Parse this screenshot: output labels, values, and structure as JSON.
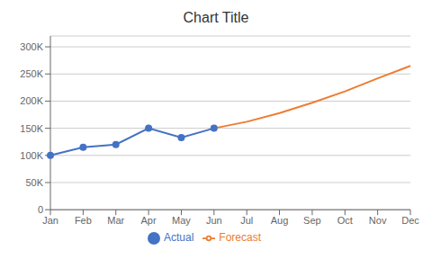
{
  "chart_data": {
    "type": "line",
    "title": "Chart Title",
    "categories": [
      "Jan",
      "Feb",
      "Mar",
      "Apr",
      "May",
      "Jun",
      "Jul",
      "Aug",
      "Sep",
      "Oct",
      "Nov",
      "Dec"
    ],
    "series": [
      {
        "name": "Actual",
        "color": "#4472C4",
        "marker": "circle",
        "values": [
          100000,
          115000,
          120000,
          150000,
          133000,
          150000,
          null,
          null,
          null,
          null,
          null,
          null
        ]
      },
      {
        "name": "Forecast",
        "color": "#ED7D31",
        "marker": "none",
        "values": [
          null,
          null,
          null,
          null,
          null,
          150000,
          162000,
          178000,
          197000,
          218000,
          242000,
          265000
        ]
      }
    ],
    "ylim": [
      0,
      320000
    ],
    "yticks": [
      0,
      {
        "value": 50000,
        "label": "50K"
      },
      {
        "value": 100000,
        "label": "100K"
      },
      {
        "value": 150000,
        "label": "150K"
      },
      {
        "value": 200000,
        "label": "200K"
      },
      {
        "value": 250000,
        "label": "250K"
      },
      {
        "value": 300000,
        "label": "300K"
      }
    ],
    "grid": true,
    "legend": "bottom"
  }
}
